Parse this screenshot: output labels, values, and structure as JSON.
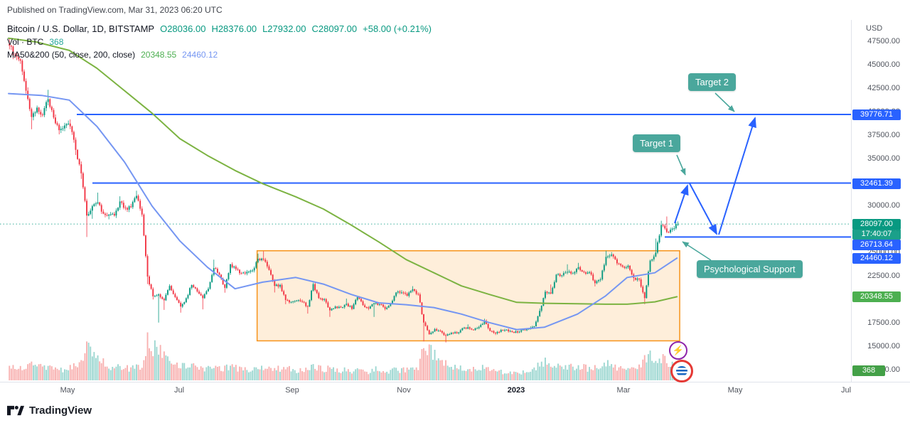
{
  "publish_text": "Published on TradingView.com, Mar 31, 2023 06:20 UTC",
  "legend": {
    "symbol": "Bitcoin / U.S. Dollar, 1D, BITSTAMP",
    "open": "O28036.00",
    "high": "H28376.00",
    "low": "L27932.00",
    "close": "C28097.00",
    "change": "+58.00 (+0.21%)",
    "volume_label": "Vol · BTC",
    "volume_value": "368",
    "ma_label": "MA50&200 (50, close, 200, close)",
    "ma200_value": "20348.55",
    "ma50_value": "24460.12"
  },
  "axis": {
    "currency_label": "USD",
    "badges": [
      {
        "label": "39776.71",
        "type": "blue"
      },
      {
        "label": "32461.39",
        "type": "blue"
      },
      {
        "label": "28097.00",
        "type": "last"
      },
      {
        "label": "17:40:07",
        "type": "count"
      },
      {
        "label": "26713.64",
        "type": "blue"
      },
      {
        "label": "24460.12",
        "type": "blue"
      },
      {
        "label": "20348.55",
        "type": "ma200"
      },
      {
        "label": "368",
        "type": "vol"
      }
    ]
  },
  "time_axis": {
    "labels": [
      "May",
      "Jul",
      "Sep",
      "Nov",
      "2023",
      "Mar",
      "May",
      "Jul"
    ]
  },
  "callouts": [
    {
      "text": "Target 2"
    },
    {
      "text": "Target 1"
    },
    {
      "text": "Psychological Support"
    }
  ],
  "footer": {
    "brand": "TradingView"
  },
  "colors": {
    "up": "#089981",
    "down": "#f23645",
    "ma50": "#7596f2",
    "ma200": "#7cb342",
    "hline": "#2962ff",
    "arrow": "#2962ff",
    "callout_bg": "#4aa79c",
    "box_fill": "rgba(247,147,26,0.16)",
    "box_border": "#f7931a"
  },
  "chart_data": {
    "type": "candlestick",
    "symbol": "Bitcoin / U.S. Dollar",
    "exchange": "BITSTAMP",
    "interval": "1D",
    "unit": "USD",
    "last_bar": {
      "open": 28036.0,
      "high": 28376.0,
      "low": 27932.0,
      "close": 28097.0,
      "change": 58.0,
      "change_pct": 0.21
    },
    "last_volume": 368,
    "countdown": "17:40:07",
    "y_axis": {
      "min": 12500,
      "max": 47500,
      "step": 2500
    },
    "x_axis_labels": [
      "May",
      "Jul",
      "Sep",
      "Nov",
      "2023",
      "Mar",
      "May",
      "Jul"
    ],
    "horizontal_lines": [
      {
        "price": 39776.71,
        "label": "Target 2 level"
      },
      {
        "price": 32461.39,
        "label": "Target 1 level"
      },
      {
        "price": 26713.64,
        "label": "Psychological Support"
      }
    ],
    "ma50_end": 24460.12,
    "ma200_end": 20348.55,
    "range_box": {
      "price_top": 25250,
      "price_bottom": 15650
    },
    "candles_3d_close_low_high": [
      [
        47100,
        null,
        47900
      ],
      [
        46000
      ],
      [
        45500
      ],
      [
        42300
      ],
      [
        39500,
        38200
      ],
      [
        40500
      ],
      [
        39700
      ],
      [
        41400,
        null,
        42400
      ],
      [
        39450
      ],
      [
        38100,
        37650
      ],
      [
        38600
      ],
      [
        38500,
        null,
        39250
      ],
      [
        36000,
        35450
      ],
      [
        33500,
        32900
      ],
      [
        29000,
        26713
      ],
      [
        30000,
        28650
      ],
      [
        30400,
        null,
        31450
      ],
      [
        29200
      ],
      [
        29100,
        28600
      ],
      [
        29000
      ],
      [
        30500,
        null,
        31050
      ],
      [
        29800
      ],
      [
        29900
      ],
      [
        31100,
        null,
        31650
      ],
      [
        29100
      ],
      [
        22500,
        21700
      ],
      [
        20400,
        20050
      ],
      [
        20600,
        17600
      ],
      [
        19970,
        18950
      ],
      [
        21500
      ],
      [
        20300
      ],
      [
        19300,
        18650
      ],
      [
        20200
      ],
      [
        21600
      ],
      [
        20900
      ],
      [
        20200,
        19000
      ],
      [
        21200
      ],
      [
        23400,
        null,
        24300
      ],
      [
        22700
      ],
      [
        21300,
        20780
      ],
      [
        23800
      ],
      [
        23300
      ],
      [
        22850
      ],
      [
        23000
      ],
      [
        23150
      ],
      [
        24400,
        null,
        24950
      ],
      [
        24300,
        null,
        25200
      ],
      [
        23200
      ],
      [
        21500,
        20800
      ],
      [
        21600
      ],
      [
        20000,
        19550
      ],
      [
        19800
      ],
      [
        19950
      ],
      [
        19800
      ],
      [
        19300,
        18550
      ],
      [
        21700,
        null,
        21850
      ],
      [
        20200
      ],
      [
        20100
      ],
      [
        18900,
        18200
      ],
      [
        19300
      ],
      [
        19200
      ],
      [
        19600,
        null,
        20150
      ],
      [
        19050
      ],
      [
        20300,
        null,
        20450
      ],
      [
        19450
      ],
      [
        19100,
        18920
      ],
      [
        19650,
        18200
      ],
      [
        19550
      ],
      [
        19050
      ],
      [
        19600
      ],
      [
        20800
      ],
      [
        20800,
        null,
        21050
      ],
      [
        20450
      ],
      [
        21150,
        null,
        21480
      ],
      [
        20600
      ],
      [
        17600,
        15588
      ],
      [
        16350
      ],
      [
        16900
      ],
      [
        16700
      ],
      [
        16200,
        15476
      ],
      [
        16500
      ],
      [
        16450
      ],
      [
        17000
      ],
      [
        17100,
        null,
        17400
      ],
      [
        16800
      ],
      [
        17130
      ],
      [
        17780,
        null,
        18000
      ],
      [
        16700
      ],
      [
        16450,
        16270
      ],
      [
        16820
      ],
      [
        16840
      ],
      [
        16600
      ],
      [
        16550
      ],
      [
        16860
      ],
      [
        16950
      ],
      [
        17200
      ],
      [
        18850,
        null,
        19100
      ],
      [
        20880,
        null,
        21050
      ],
      [
        20700,
        null,
        21650
      ],
      [
        22700
      ],
      [
        22630
      ],
      [
        23000,
        null,
        23800
      ],
      [
        22840
      ],
      [
        23500,
        null,
        23960
      ],
      [
        22950
      ],
      [
        22960
      ],
      [
        21800,
        21450
      ],
      [
        22200
      ],
      [
        24600,
        null,
        25250
      ],
      [
        24850,
        null,
        25100
      ],
      [
        23900
      ],
      [
        23550
      ],
      [
        23650
      ],
      [
        22350,
        21980
      ],
      [
        22200
      ],
      [
        20200,
        19550
      ],
      [
        24200
      ],
      [
        25050,
        null,
        26550
      ],
      [
        28000,
        null,
        28450
      ],
      [
        27250,
        null,
        28900
      ],
      [
        27600
      ],
      [
        28097,
        27932,
        28376
      ]
    ],
    "volumes_rel": [
      32,
      26,
      28,
      36,
      36,
      34,
      30,
      30,
      28,
      26,
      25,
      28,
      36,
      46,
      95,
      62,
      46,
      40,
      34,
      30,
      30,
      28,
      30,
      33,
      30,
      100,
      80,
      74,
      56,
      46,
      40,
      36,
      30,
      32,
      30,
      30,
      28,
      36,
      30,
      28,
      32,
      28,
      25,
      24,
      26,
      30,
      32,
      28,
      30,
      26,
      28,
      25,
      24,
      22,
      26,
      30,
      28,
      25,
      28,
      24,
      22,
      24,
      22,
      24,
      22,
      20,
      28,
      22,
      20,
      22,
      26,
      24,
      24,
      26,
      28,
      85,
      70,
      56,
      46,
      50,
      35,
      30,
      28,
      26,
      25,
      28,
      30,
      26,
      22,
      20,
      18,
      18,
      16,
      18,
      20,
      24,
      40,
      46,
      38,
      42,
      36,
      34,
      32,
      34,
      30,
      28,
      32,
      30,
      42,
      36,
      30,
      26,
      28,
      30,
      34,
      56,
      60,
      48,
      55,
      42,
      34,
      12
    ],
    "ma50_points": [
      [
        0,
        42000
      ],
      [
        6,
        41800
      ],
      [
        11,
        41300
      ],
      [
        16,
        38500
      ],
      [
        21,
        34700
      ],
      [
        26,
        30000
      ],
      [
        31,
        26300
      ],
      [
        36,
        23500
      ],
      [
        41,
        21200
      ],
      [
        46,
        21900
      ],
      [
        52,
        22400
      ],
      [
        57,
        21700
      ],
      [
        62,
        20600
      ],
      [
        67,
        19700
      ],
      [
        72,
        19500
      ],
      [
        77,
        19200
      ],
      [
        82,
        18500
      ],
      [
        87,
        17600
      ],
      [
        92,
        16850
      ],
      [
        97,
        17100
      ],
      [
        103,
        18500
      ],
      [
        108,
        20400
      ],
      [
        112,
        22400
      ],
      [
        117,
        22900
      ],
      [
        121,
        24460
      ]
    ],
    "ma200_points": [
      [
        0,
        47900
      ],
      [
        5,
        47500
      ],
      [
        11,
        46600
      ],
      [
        16,
        44700
      ],
      [
        21,
        42300
      ],
      [
        26,
        39900
      ],
      [
        31,
        37200
      ],
      [
        36,
        35400
      ],
      [
        41,
        33800
      ],
      [
        46,
        32400
      ],
      [
        52,
        31000
      ],
      [
        57,
        29700
      ],
      [
        62,
        28000
      ],
      [
        67,
        26200
      ],
      [
        72,
        24300
      ],
      [
        77,
        22900
      ],
      [
        82,
        21500
      ],
      [
        87,
        20600
      ],
      [
        92,
        19750
      ],
      [
        97,
        19650
      ],
      [
        103,
        19600
      ],
      [
        108,
        19550
      ],
      [
        112,
        19550
      ],
      [
        117,
        19800
      ],
      [
        121,
        20348
      ]
    ]
  }
}
